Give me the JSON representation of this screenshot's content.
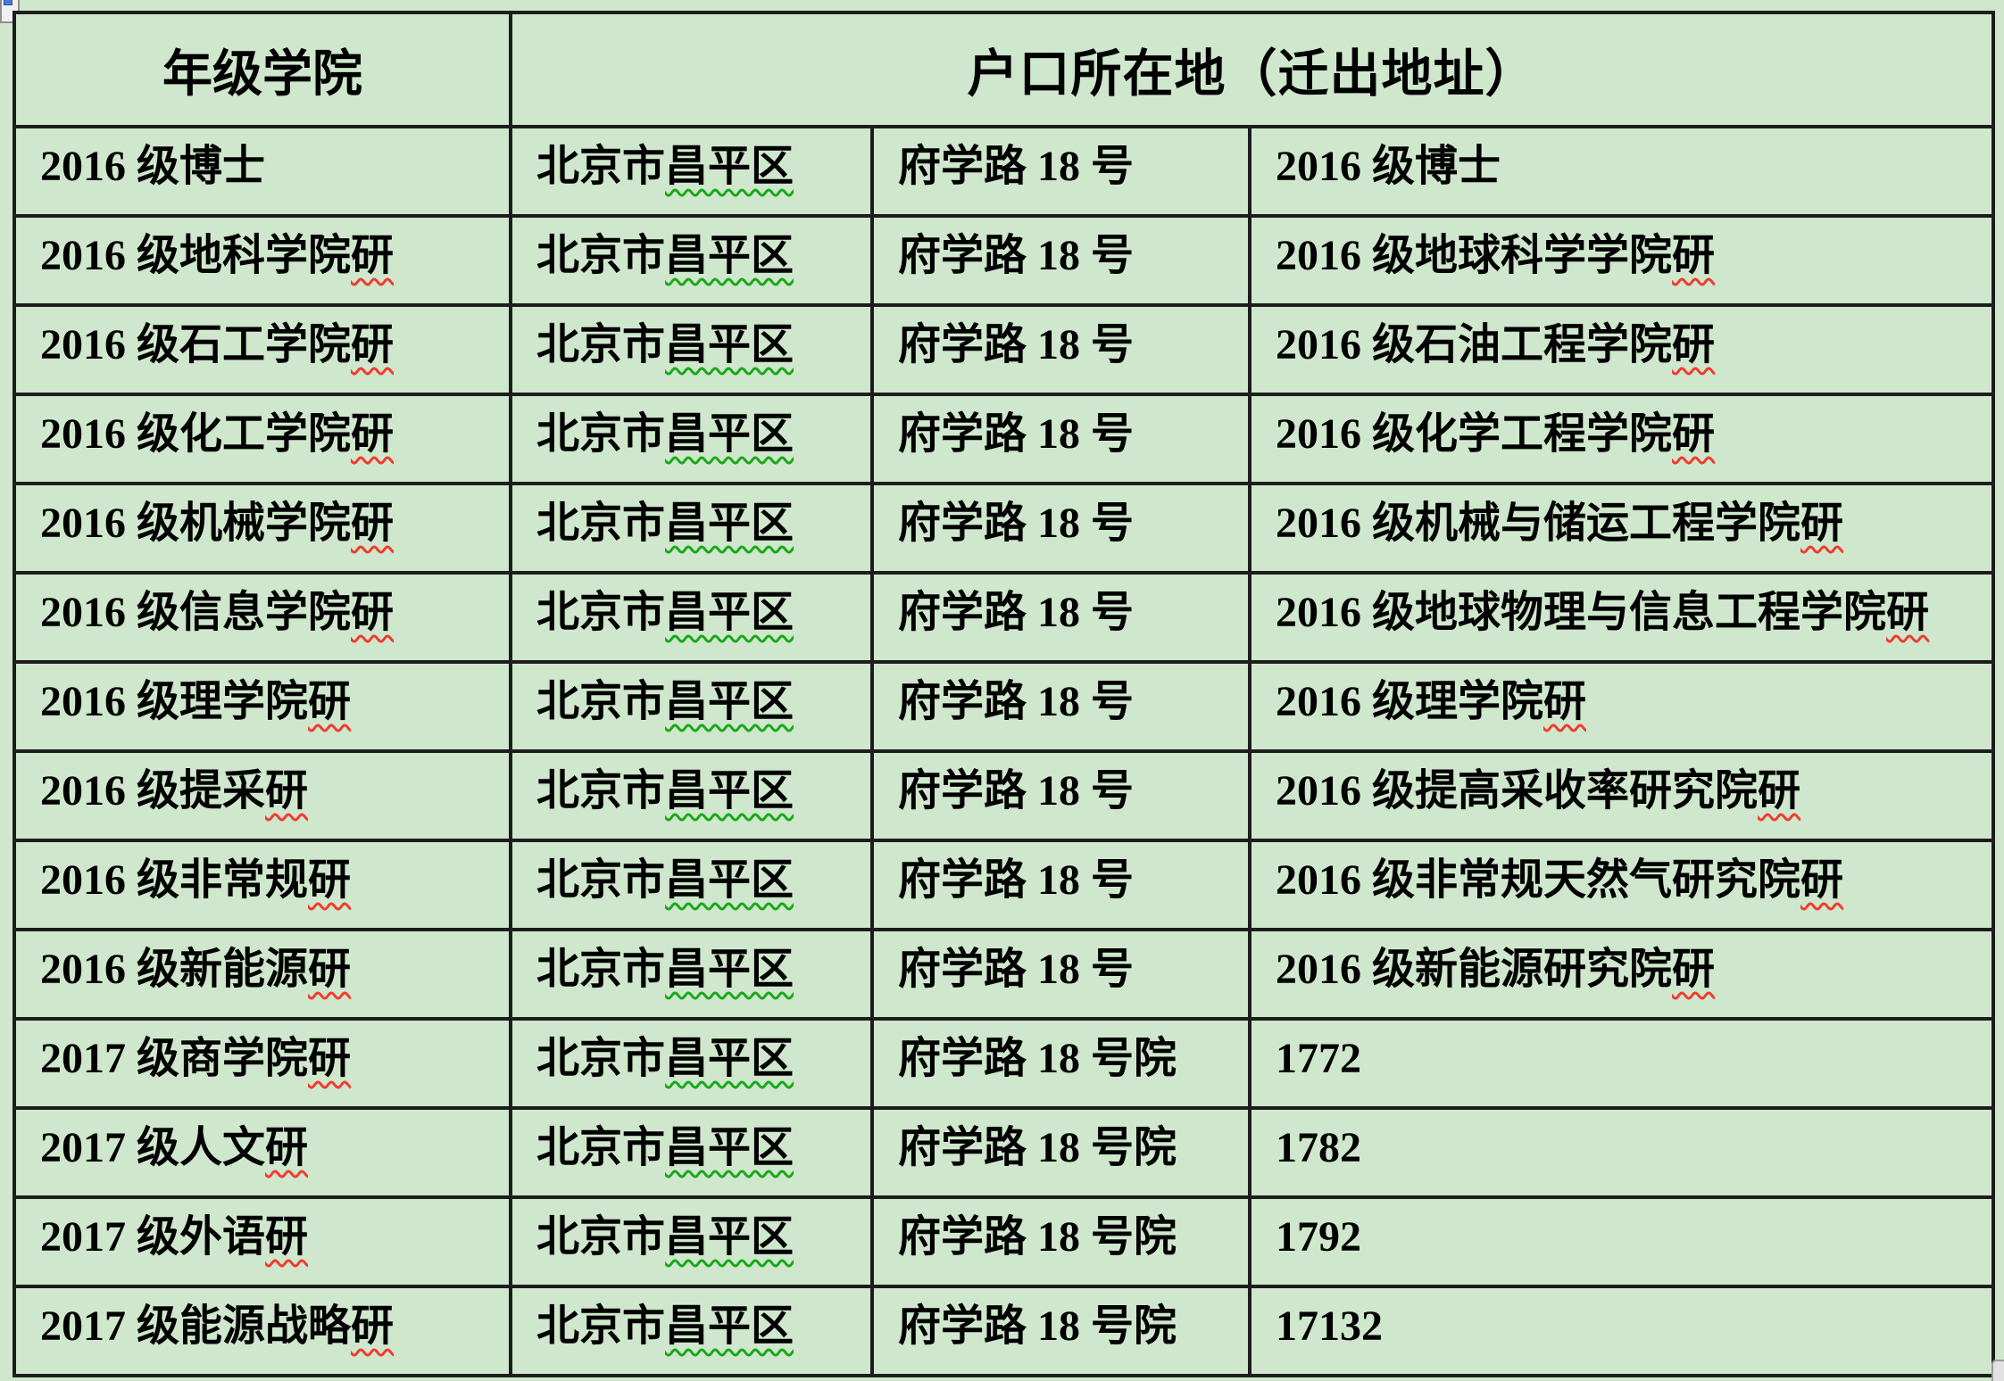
{
  "page": {
    "background_color": "#cfe7cc",
    "table_border_color": "#1d1d1d",
    "spellcheck_red": "#f23a2f",
    "grammar_green": "#18a818"
  },
  "table": {
    "header": {
      "col1": "年级学院",
      "col2": "户口所在地（迁出地址）"
    },
    "rows": [
      {
        "grade": {
          "t": "2016 级博士",
          "w": ""
        },
        "city": {
          "t": "北京市",
          "w": "昌平区"
        },
        "street": {
          "t": "府学路 18 号",
          "w": ""
        },
        "origin": {
          "t": "2016 级博士",
          "w": ""
        }
      },
      {
        "grade": {
          "t": "2016 级地科学院",
          "w": "研"
        },
        "city": {
          "t": "北京市",
          "w": "昌平区"
        },
        "street": {
          "t": "府学路 18 号",
          "w": ""
        },
        "origin": {
          "t": "2016 级地球科学学院",
          "w": "研"
        }
      },
      {
        "grade": {
          "t": "2016 级石工学院",
          "w": "研"
        },
        "city": {
          "t": "北京市",
          "w": "昌平区"
        },
        "street": {
          "t": "府学路 18 号",
          "w": ""
        },
        "origin": {
          "t": "2016 级石油工程学院",
          "w": "研"
        }
      },
      {
        "grade": {
          "t": "2016 级化工学院",
          "w": "研"
        },
        "city": {
          "t": "北京市",
          "w": "昌平区"
        },
        "street": {
          "t": "府学路 18 号",
          "w": ""
        },
        "origin": {
          "t": "2016 级化学工程学院",
          "w": "研"
        }
      },
      {
        "grade": {
          "t": "2016 级机械学院",
          "w": "研"
        },
        "city": {
          "t": "北京市",
          "w": "昌平区"
        },
        "street": {
          "t": "府学路 18 号",
          "w": ""
        },
        "origin": {
          "t": "2016 级机械与储运工程学院",
          "w": "研"
        }
      },
      {
        "grade": {
          "t": "2016 级信息学院",
          "w": "研"
        },
        "city": {
          "t": "北京市",
          "w": "昌平区"
        },
        "street": {
          "t": "府学路 18 号",
          "w": ""
        },
        "origin": {
          "t": "2016 级地球物理与信息工程学院",
          "w": "研"
        }
      },
      {
        "grade": {
          "t": "2016 级理学院",
          "w": "研"
        },
        "city": {
          "t": "北京市",
          "w": "昌平区"
        },
        "street": {
          "t": "府学路 18 号",
          "w": ""
        },
        "origin": {
          "t": "2016 级理学院",
          "w": "研"
        }
      },
      {
        "grade": {
          "t": "2016 级提采",
          "w": "研"
        },
        "city": {
          "t": "北京市",
          "w": "昌平区"
        },
        "street": {
          "t": "府学路 18 号",
          "w": ""
        },
        "origin": {
          "t": "2016 级提高采收率研究院",
          "w": "研"
        }
      },
      {
        "grade": {
          "t": "2016 级非常规",
          "w": "研"
        },
        "city": {
          "t": "北京市",
          "w": "昌平区"
        },
        "street": {
          "t": "府学路 18 号",
          "w": ""
        },
        "origin": {
          "t": "2016 级非常规天然气研究院",
          "w": "研"
        }
      },
      {
        "grade": {
          "t": "2016 级新能源",
          "w": "研"
        },
        "city": {
          "t": "北京市",
          "w": "昌平区"
        },
        "street": {
          "t": "府学路 18 号",
          "w": ""
        },
        "origin": {
          "t": "2016 级新能源研究院",
          "w": "研"
        }
      },
      {
        "grade": {
          "t": "2017 级商学院",
          "w": "研"
        },
        "city": {
          "t": "北京市",
          "w": "昌平区"
        },
        "street": {
          "t": "府学路 18 号院",
          "w": ""
        },
        "origin": {
          "t": "1772",
          "w": ""
        }
      },
      {
        "grade": {
          "t": "2017 级人文",
          "w": "研"
        },
        "city": {
          "t": "北京市",
          "w": "昌平区"
        },
        "street": {
          "t": "府学路 18 号院",
          "w": ""
        },
        "origin": {
          "t": "1782",
          "w": ""
        }
      },
      {
        "grade": {
          "t": "2017 级外语",
          "w": "研"
        },
        "city": {
          "t": "北京市",
          "w": "昌平区"
        },
        "street": {
          "t": "府学路 18 号院",
          "w": ""
        },
        "origin": {
          "t": "1792",
          "w": ""
        }
      },
      {
        "grade": {
          "t": "2017 级能源战略",
          "w": "研"
        },
        "city": {
          "t": "北京市",
          "w": "昌平区"
        },
        "street": {
          "t": "府学路 18 号院",
          "w": ""
        },
        "origin": {
          "t": "17132",
          "w": ""
        }
      }
    ]
  }
}
